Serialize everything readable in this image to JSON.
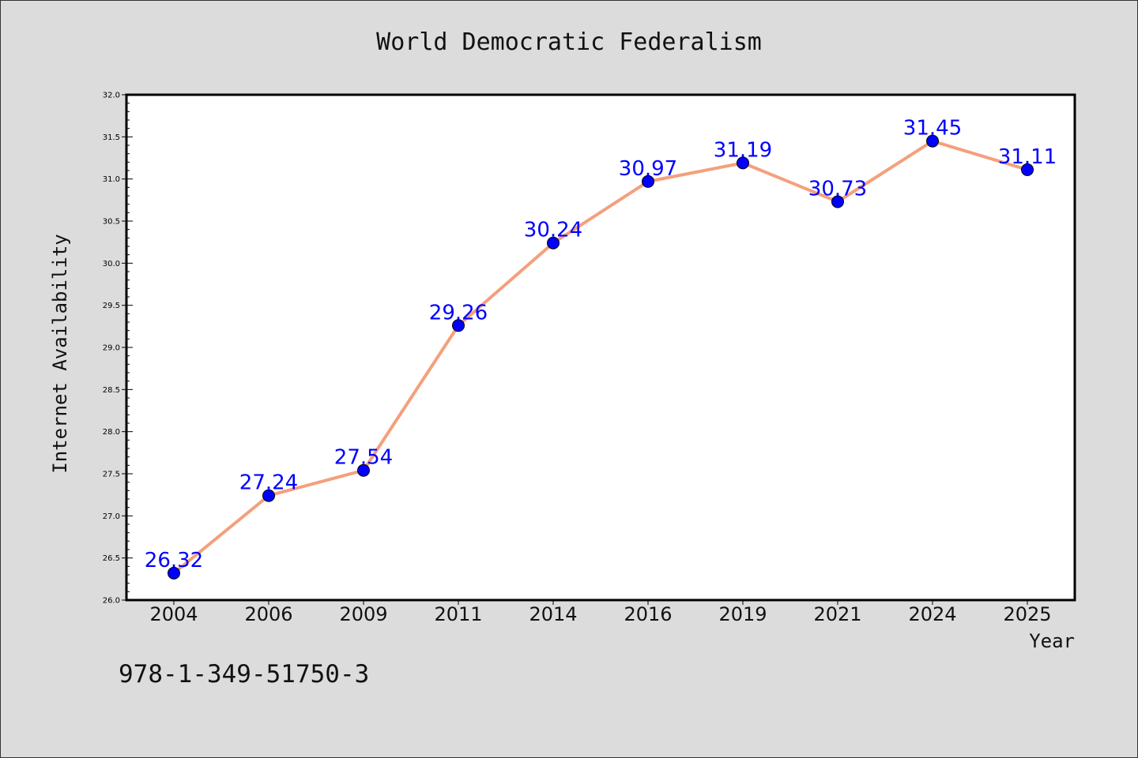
{
  "page_text": {
    "isbn": "978-1-349-51750-3"
  },
  "colors": {
    "background": "#dcdcdc",
    "plot_background": "#ffffff",
    "line": "#f4a07c",
    "marker": "#0000ff",
    "data_label": "#0000ff"
  },
  "chart_data": {
    "type": "line",
    "title": "World Democratic Federalism",
    "xlabel": "Year",
    "ylabel": "Internet Availability",
    "categories": [
      "2004",
      "2006",
      "2009",
      "2011",
      "2014",
      "2016",
      "2019",
      "2021",
      "2024",
      "2025"
    ],
    "series": [
      {
        "values": [
          26.32,
          27.24,
          27.54,
          29.26,
          30.24,
          30.97,
          31.19,
          30.73,
          31.45,
          31.11
        ],
        "data_labels": [
          "26.32",
          "27.24",
          "27.54",
          "29.26",
          "30.24",
          "30.97",
          "31.19",
          "30.73",
          "31.45",
          "31.11"
        ]
      }
    ],
    "ylim": [
      26.0,
      32.0
    ],
    "yticks": [
      "26.0",
      "26.5",
      "27.0",
      "27.5",
      "28.0",
      "28.5",
      "29.0",
      "29.5",
      "30.0",
      "30.5",
      "31.0",
      "31.5",
      "32.0"
    ],
    "grid": false,
    "legend": "none"
  }
}
